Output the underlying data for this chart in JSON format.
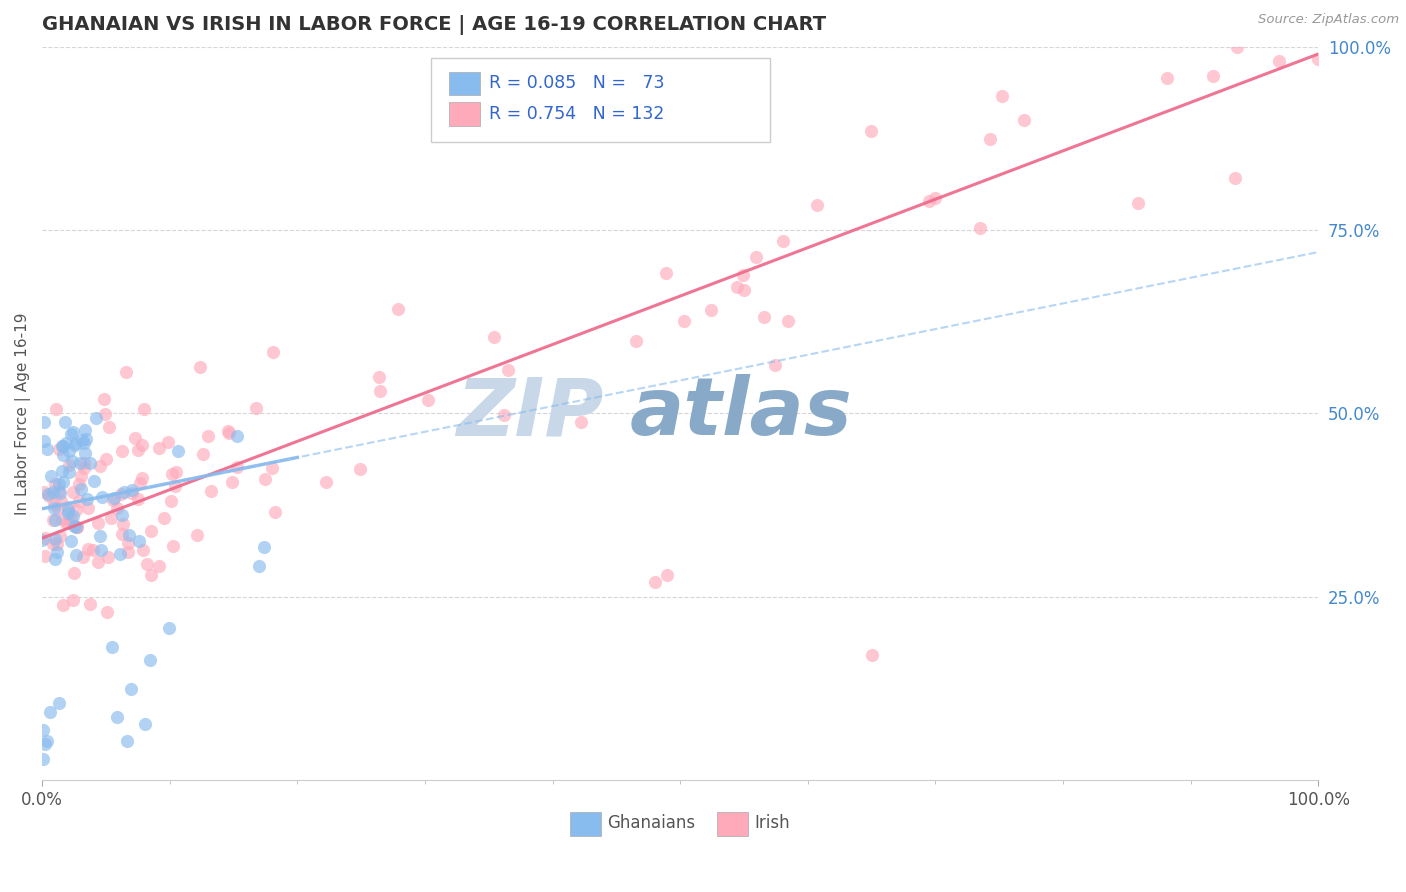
{
  "title": "GHANAIAN VS IRISH IN LABOR FORCE | AGE 16-19 CORRELATION CHART",
  "source": "Source: ZipAtlas.com",
  "ylabel": "In Labor Force | Age 16-19",
  "color_ghanaian": "#88bbee",
  "color_irish": "#ffaabb",
  "trend_ghanaian_color": "#88bbee",
  "trend_irish_color": "#ee6688",
  "title_color": "#333333",
  "axis_tick_color": "#4488cc",
  "legend_label_ghanaian": "Ghanaians",
  "legend_label_irish": "Irish",
  "watermark_zip_color": "#c8d8e8",
  "watermark_atlas_color": "#88aac8"
}
